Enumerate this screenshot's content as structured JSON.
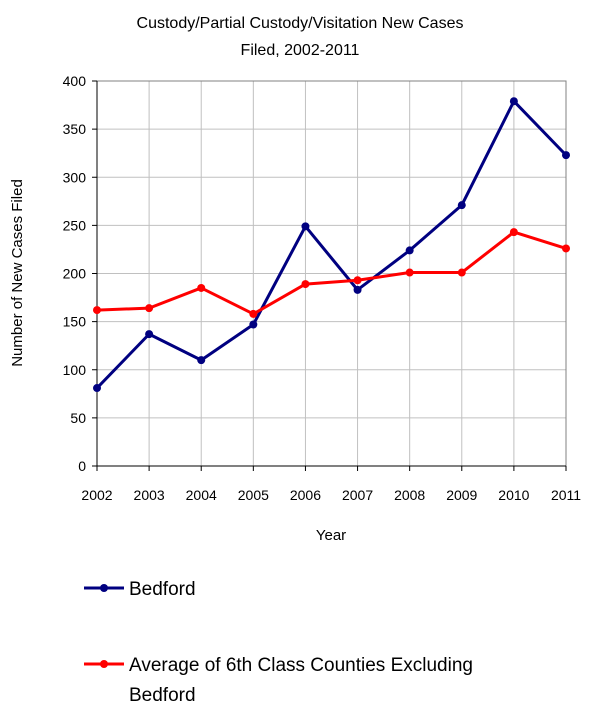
{
  "chart_data": {
    "type": "line",
    "title_lines": [
      "Custody/Partial Custody/Visitation New  Cases",
      "Filed, 2002-2011"
    ],
    "xlabel": "Year",
    "ylabel": "Number of New Cases Filed",
    "categories": [
      "2002",
      "2003",
      "2004",
      "2005",
      "2006",
      "2007",
      "2008",
      "2009",
      "2010",
      "2011"
    ],
    "ylim": [
      0,
      400
    ],
    "yticks": [
      0,
      50,
      100,
      150,
      200,
      250,
      300,
      350,
      400
    ],
    "grid": true,
    "legend_position": "bottom",
    "series": [
      {
        "name": "Bedford",
        "name_lines": [
          "Bedford"
        ],
        "color": "#000080",
        "values": [
          81,
          137,
          110,
          147,
          249,
          183,
          224,
          271,
          379,
          323
        ]
      },
      {
        "name": "Average of 6th Class Counties Excluding Bedford",
        "name_lines": [
          "Average of 6th Class Counties Excluding",
          "Bedford"
        ],
        "color": "#ff0000",
        "values": [
          162,
          164,
          185,
          158,
          189,
          193,
          201,
          201,
          243,
          226
        ]
      }
    ]
  }
}
